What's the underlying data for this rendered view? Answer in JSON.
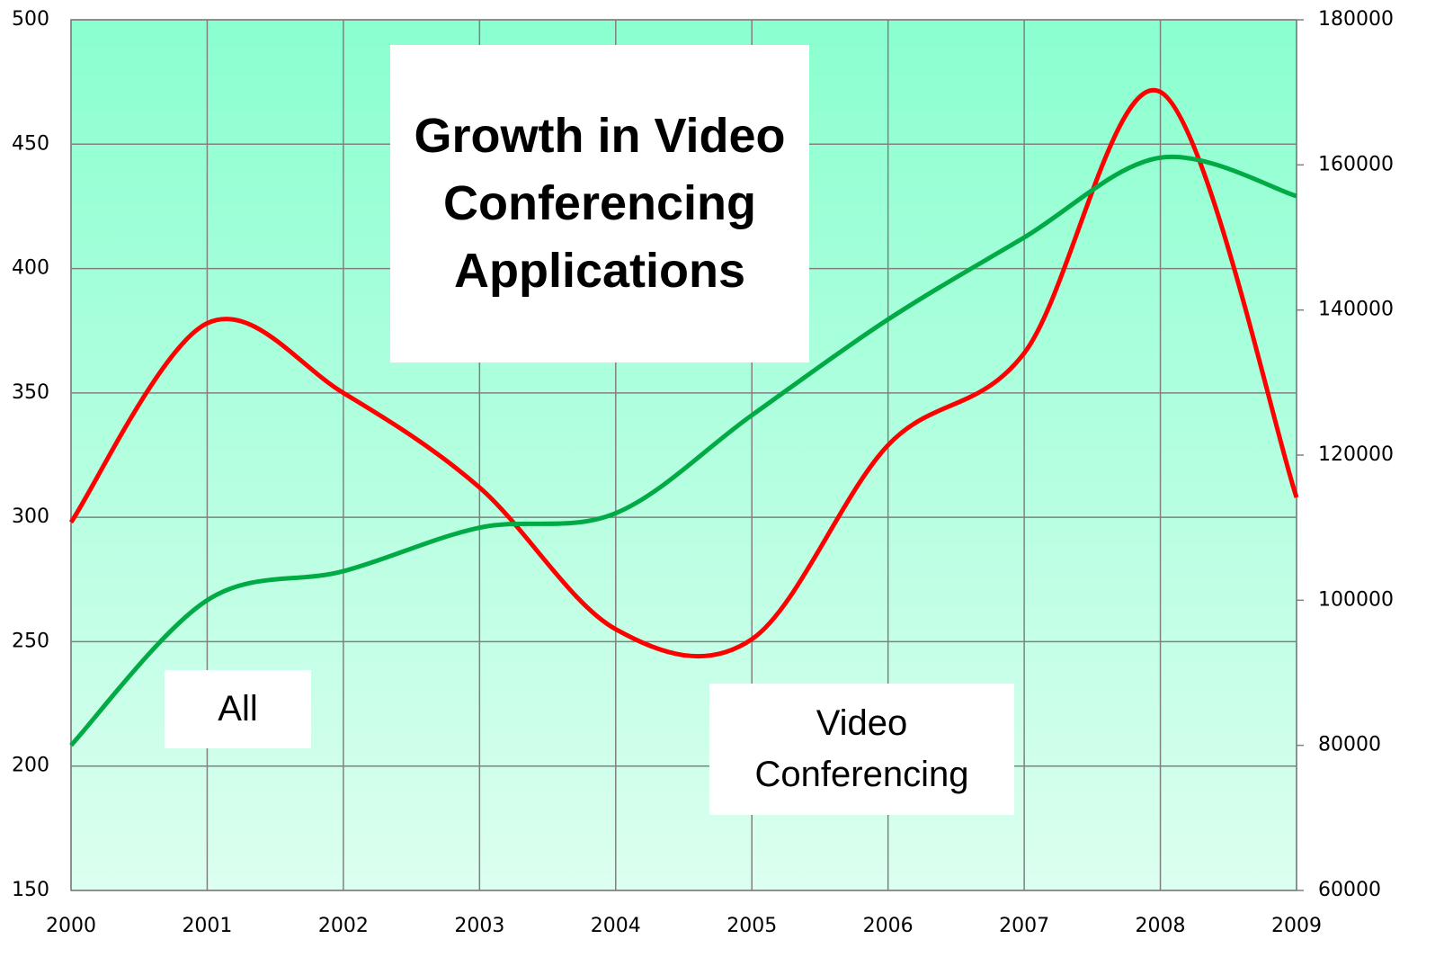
{
  "chart_data": {
    "type": "line",
    "title": "Growth in Video Conferencing Applications",
    "x": [
      2000,
      2001,
      2002,
      2003,
      2004,
      2005,
      2006,
      2007,
      2008,
      2009
    ],
    "xlim": [
      2000,
      2009
    ],
    "xticks": [
      2000,
      2001,
      2002,
      2003,
      2004,
      2005,
      2006,
      2007,
      2008,
      2009
    ],
    "ylim": [
      150,
      500
    ],
    "yticks": [
      150,
      200,
      250,
      300,
      350,
      400,
      450,
      500
    ],
    "y2lim": [
      60000,
      180000
    ],
    "y2ticks": [
      60000,
      80000,
      100000,
      120000,
      140000,
      160000,
      180000
    ],
    "grid": true,
    "series": [
      {
        "name": "Video Conferencing",
        "color": "#ff0000",
        "values": [
          298,
          378,
          350,
          312,
          255,
          251,
          329,
          366,
          471,
          308
        ]
      },
      {
        "name": "All",
        "color": "#00aa44",
        "axis": "y2",
        "values": [
          80000,
          100000,
          104000,
          110000,
          112000,
          125500,
          138700,
          150000,
          161000,
          155700
        ]
      }
    ]
  }
}
